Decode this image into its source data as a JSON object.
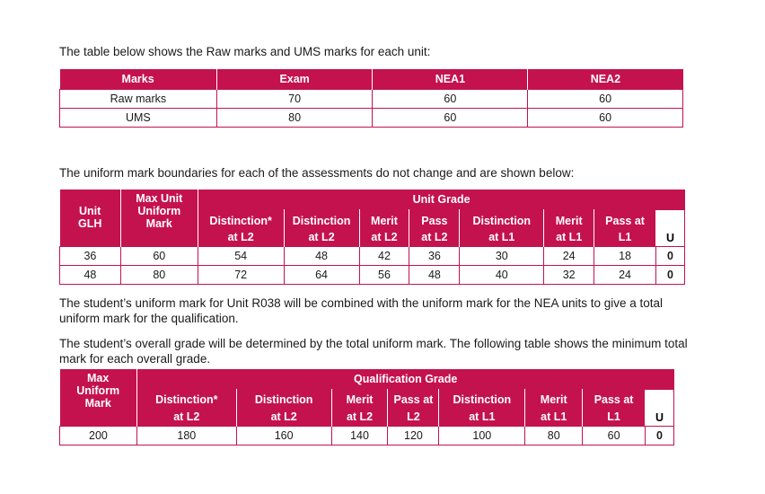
{
  "intro1": "The table below shows the Raw marks and UMS marks for each unit:",
  "table1": {
    "headers": [
      "Marks",
      "Exam",
      "NEA1",
      "NEA2"
    ],
    "rows": [
      [
        "Raw marks",
        "70",
        "60",
        "60"
      ],
      [
        "UMS",
        "80",
        "60",
        "60"
      ]
    ]
  },
  "intro2": "The uniform mark boundaries for each of the assessments do not change and are shown below:",
  "table2": {
    "unit_glh_1": "Unit",
    "unit_glh_2": "GLH",
    "max_1": "Max Unit",
    "max_2": "Uniform",
    "max_3": "Mark",
    "group": "Unit Grade",
    "grades": [
      {
        "a": "Distinction*",
        "b": "at L2"
      },
      {
        "a": "Distinction",
        "b": "at L2"
      },
      {
        "a": "Merit",
        "b": "at L2"
      },
      {
        "a": "Pass",
        "b": "at L2"
      },
      {
        "a": "Distinction",
        "b": "at L1"
      },
      {
        "a": "Merit",
        "b": "at L1"
      },
      {
        "a": "Pass at",
        "b": "L1"
      }
    ],
    "u": "U",
    "rows": [
      [
        "36",
        "60",
        "54",
        "48",
        "42",
        "36",
        "30",
        "24",
        "18",
        "0"
      ],
      [
        "48",
        "80",
        "72",
        "64",
        "56",
        "48",
        "40",
        "32",
        "24",
        "0"
      ]
    ]
  },
  "para3": "The student’s uniform mark for Unit R038 will be combined with the uniform mark for the NEA units to give a total uniform mark for the qualification.",
  "para4": "The student’s overall grade will be determined by the total uniform mark. The following table shows the minimum total mark for each overall grade.",
  "table3": {
    "max_1": "Max",
    "max_2": "Uniform",
    "max_3": "Mark",
    "group": "Qualification Grade",
    "grades": [
      {
        "a": "Distinction*",
        "b": "at L2"
      },
      {
        "a": "Distinction",
        "b": "at L2"
      },
      {
        "a": "Merit",
        "b": "at L2"
      },
      {
        "a": "Pass at",
        "b": "L2"
      },
      {
        "a": "Distinction",
        "b": "at L1"
      },
      {
        "a": "Merit",
        "b": "at L1"
      },
      {
        "a": "Pass at",
        "b": "L1"
      }
    ],
    "u": "U",
    "row": [
      "200",
      "180",
      "160",
      "140",
      "120",
      "100",
      "80",
      "60",
      "0"
    ]
  },
  "colors": {
    "accent": "#c4124f"
  }
}
